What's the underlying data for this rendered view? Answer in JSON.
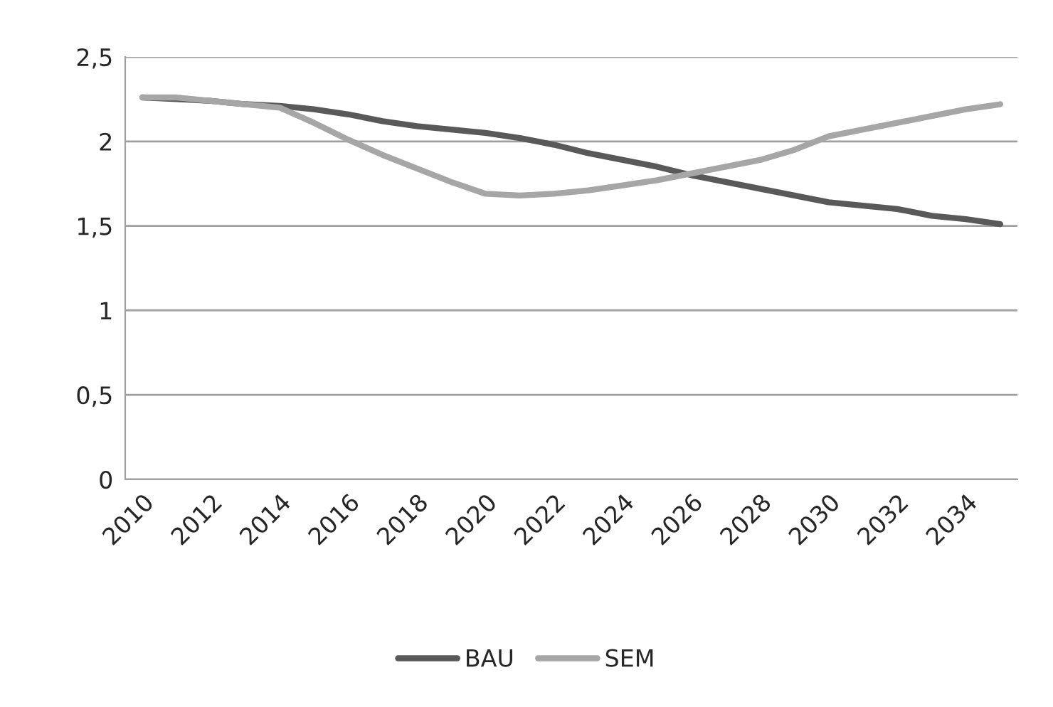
{
  "chart_data": {
    "type": "line",
    "categories": [
      "2010",
      null,
      "2012",
      null,
      "2014",
      null,
      "2016",
      null,
      "2018",
      null,
      "2020",
      null,
      "2022",
      null,
      "2024",
      null,
      "2026",
      null,
      "2028",
      null,
      "2030",
      null,
      "2032",
      null,
      "2034",
      null
    ],
    "series": [
      {
        "name": "BAU",
        "color": "#595959",
        "values": [
          2.26,
          2.25,
          2.24,
          2.22,
          2.21,
          2.19,
          2.16,
          2.12,
          2.09,
          2.07,
          2.05,
          2.02,
          1.98,
          1.93,
          1.89,
          1.85,
          1.8,
          1.76,
          1.72,
          1.68,
          1.64,
          1.62,
          1.6,
          1.56,
          1.54,
          1.51
        ]
      },
      {
        "name": "SEM",
        "color": "#a6a6a6",
        "values": [
          2.26,
          2.26,
          2.24,
          2.22,
          2.2,
          2.11,
          2.01,
          1.92,
          1.84,
          1.76,
          1.69,
          1.68,
          1.69,
          1.71,
          1.74,
          1.77,
          1.81,
          1.85,
          1.89,
          1.95,
          2.03,
          2.07,
          2.11,
          2.15,
          2.19,
          2.22
        ]
      }
    ],
    "ylim": [
      0,
      2.5
    ],
    "yticks": [
      0,
      {
        "value": 0.5,
        "label": "0,5"
      },
      1,
      {
        "value": 1.5,
        "label": "1,5"
      },
      2,
      {
        "value": 2.5,
        "label": "2,5"
      }
    ],
    "grid": "y",
    "legend": "bottom",
    "marker": "none",
    "line_style": "solid"
  }
}
